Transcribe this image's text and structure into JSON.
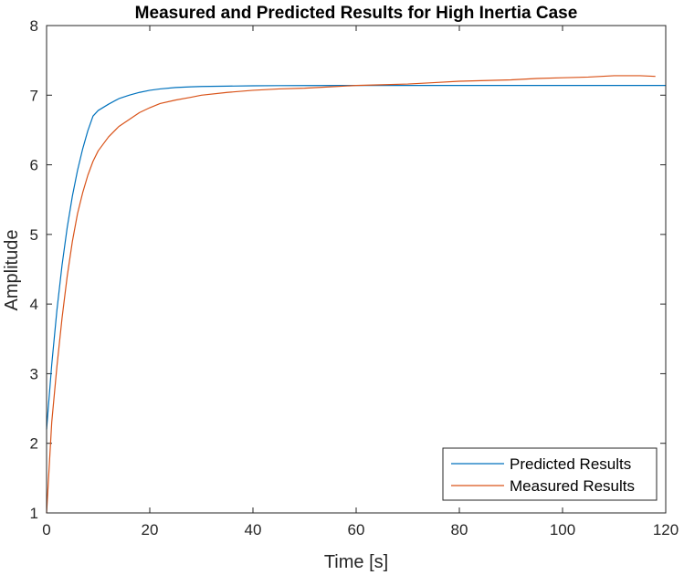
{
  "chart_data": {
    "type": "line",
    "title": "Measured and Predicted Results for High Inertia Case",
    "xlabel": "Time [s]",
    "ylabel": "Amplitude",
    "xlim": [
      0,
      120
    ],
    "ylim": [
      1,
      8
    ],
    "xticks": [
      0,
      20,
      40,
      60,
      80,
      100,
      120
    ],
    "yticks": [
      1,
      2,
      3,
      4,
      5,
      6,
      7,
      8
    ],
    "grid": false,
    "legend_position": "bottom-right",
    "series": [
      {
        "name": "Predicted Results",
        "color": "#0072BD",
        "x": [
          0,
          1,
          2,
          3,
          4,
          5,
          6,
          7,
          8,
          9,
          10,
          12,
          14,
          16,
          18,
          20,
          22,
          25,
          28,
          30,
          35,
          40,
          45,
          50,
          60,
          70,
          80,
          90,
          100,
          110,
          120
        ],
        "y": [
          2.2,
          3.13,
          3.91,
          4.56,
          5.1,
          5.55,
          5.92,
          6.23,
          6.49,
          6.7,
          6.78,
          6.87,
          6.95,
          7.0,
          7.04,
          7.07,
          7.09,
          7.11,
          7.12,
          7.125,
          7.13,
          7.135,
          7.137,
          7.138,
          7.14,
          7.14,
          7.14,
          7.14,
          7.14,
          7.14,
          7.14
        ]
      },
      {
        "name": "Measured Results",
        "color": "#D95319",
        "x": [
          0,
          1,
          2,
          3,
          4,
          5,
          6,
          7,
          8,
          9,
          10,
          12,
          14,
          16,
          18,
          20,
          22,
          25,
          28,
          30,
          35,
          40,
          45,
          50,
          55,
          60,
          65,
          70,
          75,
          80,
          85,
          90,
          95,
          100,
          105,
          110,
          115,
          118
        ],
        "y": [
          1.0,
          2.3,
          3.1,
          3.8,
          4.4,
          4.9,
          5.3,
          5.6,
          5.85,
          6.05,
          6.2,
          6.4,
          6.55,
          6.65,
          6.75,
          6.82,
          6.88,
          6.93,
          6.97,
          7.0,
          7.04,
          7.07,
          7.09,
          7.1,
          7.12,
          7.14,
          7.15,
          7.16,
          7.18,
          7.2,
          7.21,
          7.22,
          7.24,
          7.25,
          7.26,
          7.28,
          7.28,
          7.27
        ]
      }
    ]
  }
}
